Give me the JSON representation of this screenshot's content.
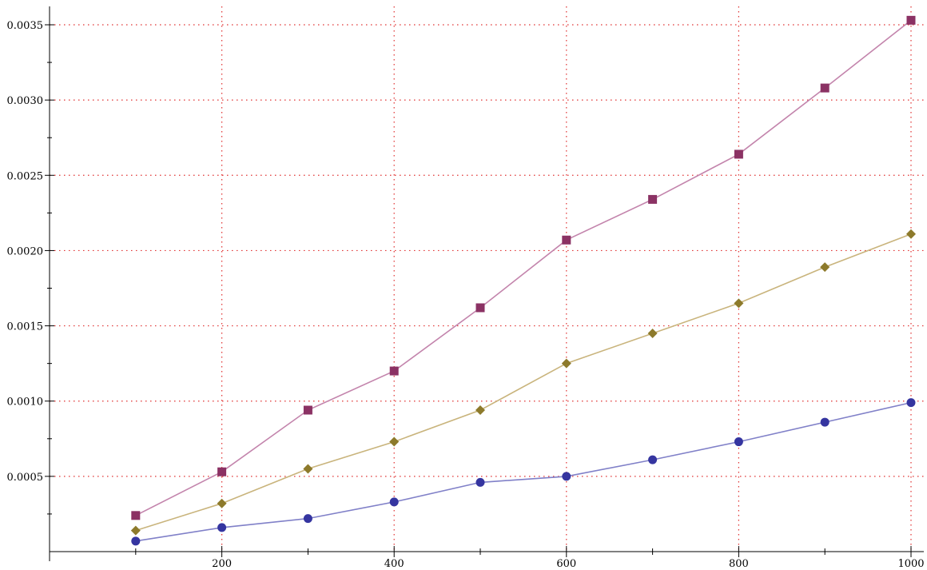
{
  "chart_data": {
    "type": "line",
    "title": "",
    "xlabel": "",
    "ylabel": "",
    "x": [
      100,
      200,
      300,
      400,
      500,
      600,
      700,
      800,
      900,
      1000
    ],
    "series": [
      {
        "marker": "square",
        "color": "#8b3264",
        "line_color": "#c384ac",
        "values": [
          0.00024,
          0.00053,
          0.00094,
          0.0012,
          0.00162,
          0.00207,
          0.00234,
          0.00264,
          0.00308,
          0.00353
        ]
      },
      {
        "marker": "diamond",
        "color": "#8d7a2b",
        "line_color": "#c9b47c",
        "values": [
          0.00014,
          0.00032,
          0.00055,
          0.00073,
          0.00094,
          0.00125,
          0.00145,
          0.00165,
          0.00189,
          0.00211
        ]
      },
      {
        "marker": "circle",
        "color": "#3535a0",
        "line_color": "#8080c8",
        "values": [
          7e-05,
          0.00016,
          0.00022,
          0.00033,
          0.00046,
          0.0005,
          0.00061,
          0.00073,
          0.00086,
          0.00099
        ]
      }
    ],
    "xlim": [
      0,
      1040
    ],
    "ylim": [
      -5e-05,
      0.00362
    ],
    "x_tick_values": [
      200,
      400,
      600,
      800,
      1000
    ],
    "x_tick_labels": [
      "200",
      "400",
      "600",
      "800",
      "1000"
    ],
    "x_minor_ticks": [
      100,
      300,
      500,
      700,
      900
    ],
    "y_tick_values": [
      0.0005,
      0.001,
      0.0015,
      0.002,
      0.0025,
      0.003,
      0.0035
    ],
    "y_tick_labels": [
      "0.0005",
      "0.0010",
      "0.0015",
      "0.0020",
      "0.0025",
      "0.0030",
      "0.0035"
    ],
    "grid": true,
    "grid_color": "#e03030",
    "legend": "none"
  }
}
